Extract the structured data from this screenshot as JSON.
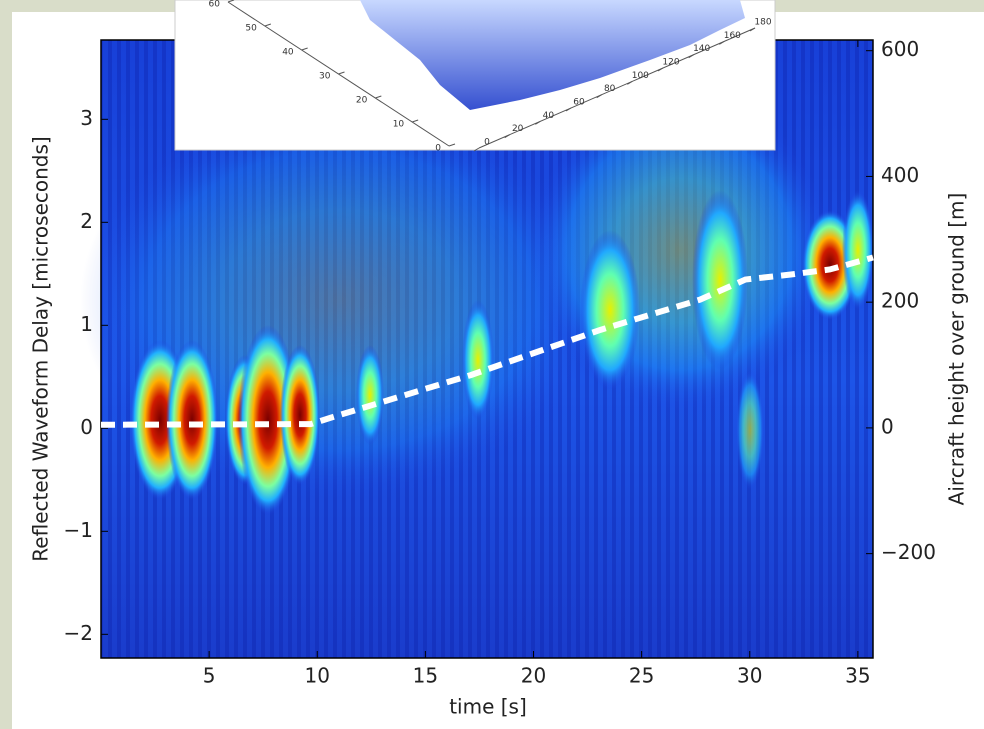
{
  "chart_data": [
    {
      "type": "line",
      "x_label": "time [s]",
      "y_label": "Reflected Waveform Delay [microseconds]",
      "y2_label": "Aircraft height over ground [m]",
      "xlim": [
        0,
        35.7
      ],
      "xticks": [
        5,
        10,
        15,
        20,
        25,
        30,
        35
      ],
      "ylim": [
        -2.23,
        3.77
      ],
      "yticks": [
        {
          "value": -2,
          "label": "−2"
        },
        {
          "value": -1,
          "label": "−1"
        },
        0,
        1,
        2,
        3
      ],
      "y2lim": [
        -366,
        617
      ],
      "y2ticks": [
        {
          "value": -200,
          "label": "−200"
        },
        0,
        200,
        400,
        600
      ],
      "series": [
        {
          "color": "#ffffff",
          "axis": "y2",
          "x": [
            0,
            9.7,
            10.6,
            17.1,
            23.1,
            27.7,
            29.8,
            31.9,
            33.7,
            35.7
          ],
          "values": [
            5,
            6,
            16,
            84,
            156,
            204,
            236,
            244,
            252,
            271
          ]
        }
      ]
    },
    {
      "type": "surface",
      "xlim": [
        0,
        180
      ],
      "xticks": [
        0,
        20,
        40,
        60,
        80,
        100,
        120,
        140,
        160,
        180
      ],
      "ylim": [
        0,
        60
      ],
      "yticks": [
        0,
        10,
        20,
        30,
        40,
        50,
        60
      ]
    }
  ]
}
